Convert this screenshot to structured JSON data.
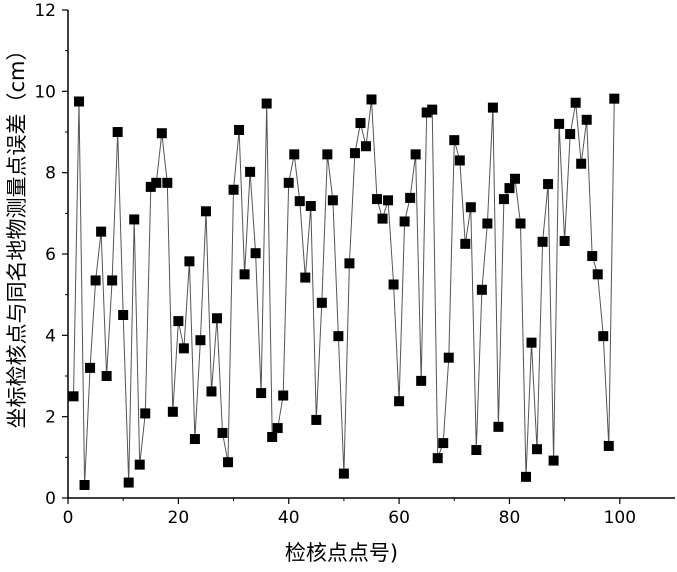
{
  "chart_data": {
    "type": "line",
    "title": "",
    "xlabel": "检核点点号)",
    "ylabel": "坐标检核点与同名地物测量点误差（cm）",
    "xlim": [
      0,
      110
    ],
    "ylim": [
      0,
      12
    ],
    "xticks": [
      0,
      20,
      40,
      60,
      80,
      100
    ],
    "yticks": [
      0,
      2,
      4,
      6,
      8,
      10,
      12
    ],
    "marker": "square",
    "line_color": "#555555",
    "marker_color": "#000000",
    "grid": false,
    "series": [
      {
        "x": [
          1,
          2,
          3,
          4,
          5,
          6,
          7,
          8,
          9,
          10,
          11,
          12,
          13,
          14,
          15,
          16,
          17,
          18,
          19,
          20,
          21,
          22,
          23,
          24,
          25,
          26,
          27,
          28,
          29,
          30,
          31,
          32,
          33,
          34,
          35,
          36,
          37,
          38,
          39,
          40,
          41,
          42,
          43,
          44,
          45,
          46,
          47,
          48,
          49,
          50,
          51,
          52,
          53,
          54,
          55,
          56,
          57,
          58,
          59,
          60,
          61,
          62,
          63,
          64,
          65,
          66,
          67,
          68,
          69,
          70,
          71,
          72,
          73,
          74,
          75,
          76,
          77,
          78,
          79,
          80,
          81,
          82,
          83,
          84,
          85,
          86,
          87,
          88,
          89,
          90,
          91,
          92,
          93,
          94,
          95,
          96,
          97,
          98,
          99
        ],
        "values": [
          2.5,
          9.75,
          0.32,
          3.2,
          5.35,
          6.55,
          3.0,
          5.35,
          9.0,
          4.5,
          0.38,
          6.85,
          0.82,
          2.08,
          7.65,
          7.75,
          8.97,
          7.75,
          2.12,
          4.35,
          3.68,
          5.82,
          1.45,
          3.88,
          7.05,
          2.62,
          4.42,
          1.6,
          0.88,
          7.58,
          9.05,
          5.5,
          8.02,
          6.02,
          2.58,
          9.7,
          1.5,
          1.72,
          2.52,
          7.75,
          8.45,
          7.3,
          5.42,
          7.18,
          1.92,
          4.8,
          8.45,
          7.32,
          3.98,
          0.6,
          5.77,
          8.48,
          9.22,
          8.65,
          9.8,
          7.35,
          6.87,
          7.32,
          5.25,
          2.38,
          6.8,
          7.38,
          8.45,
          2.88,
          9.48,
          9.55,
          0.98,
          1.35,
          3.45,
          8.8,
          8.3,
          6.25,
          7.15,
          1.18,
          5.12,
          6.75,
          9.6,
          1.75,
          7.35,
          7.62,
          7.85,
          6.75,
          0.52,
          3.82,
          1.2,
          6.3,
          7.72,
          0.92,
          9.2,
          6.32,
          8.95,
          9.72,
          8.22,
          9.3,
          5.95,
          5.5,
          3.98,
          1.28,
          9.82
        ]
      }
    ]
  }
}
